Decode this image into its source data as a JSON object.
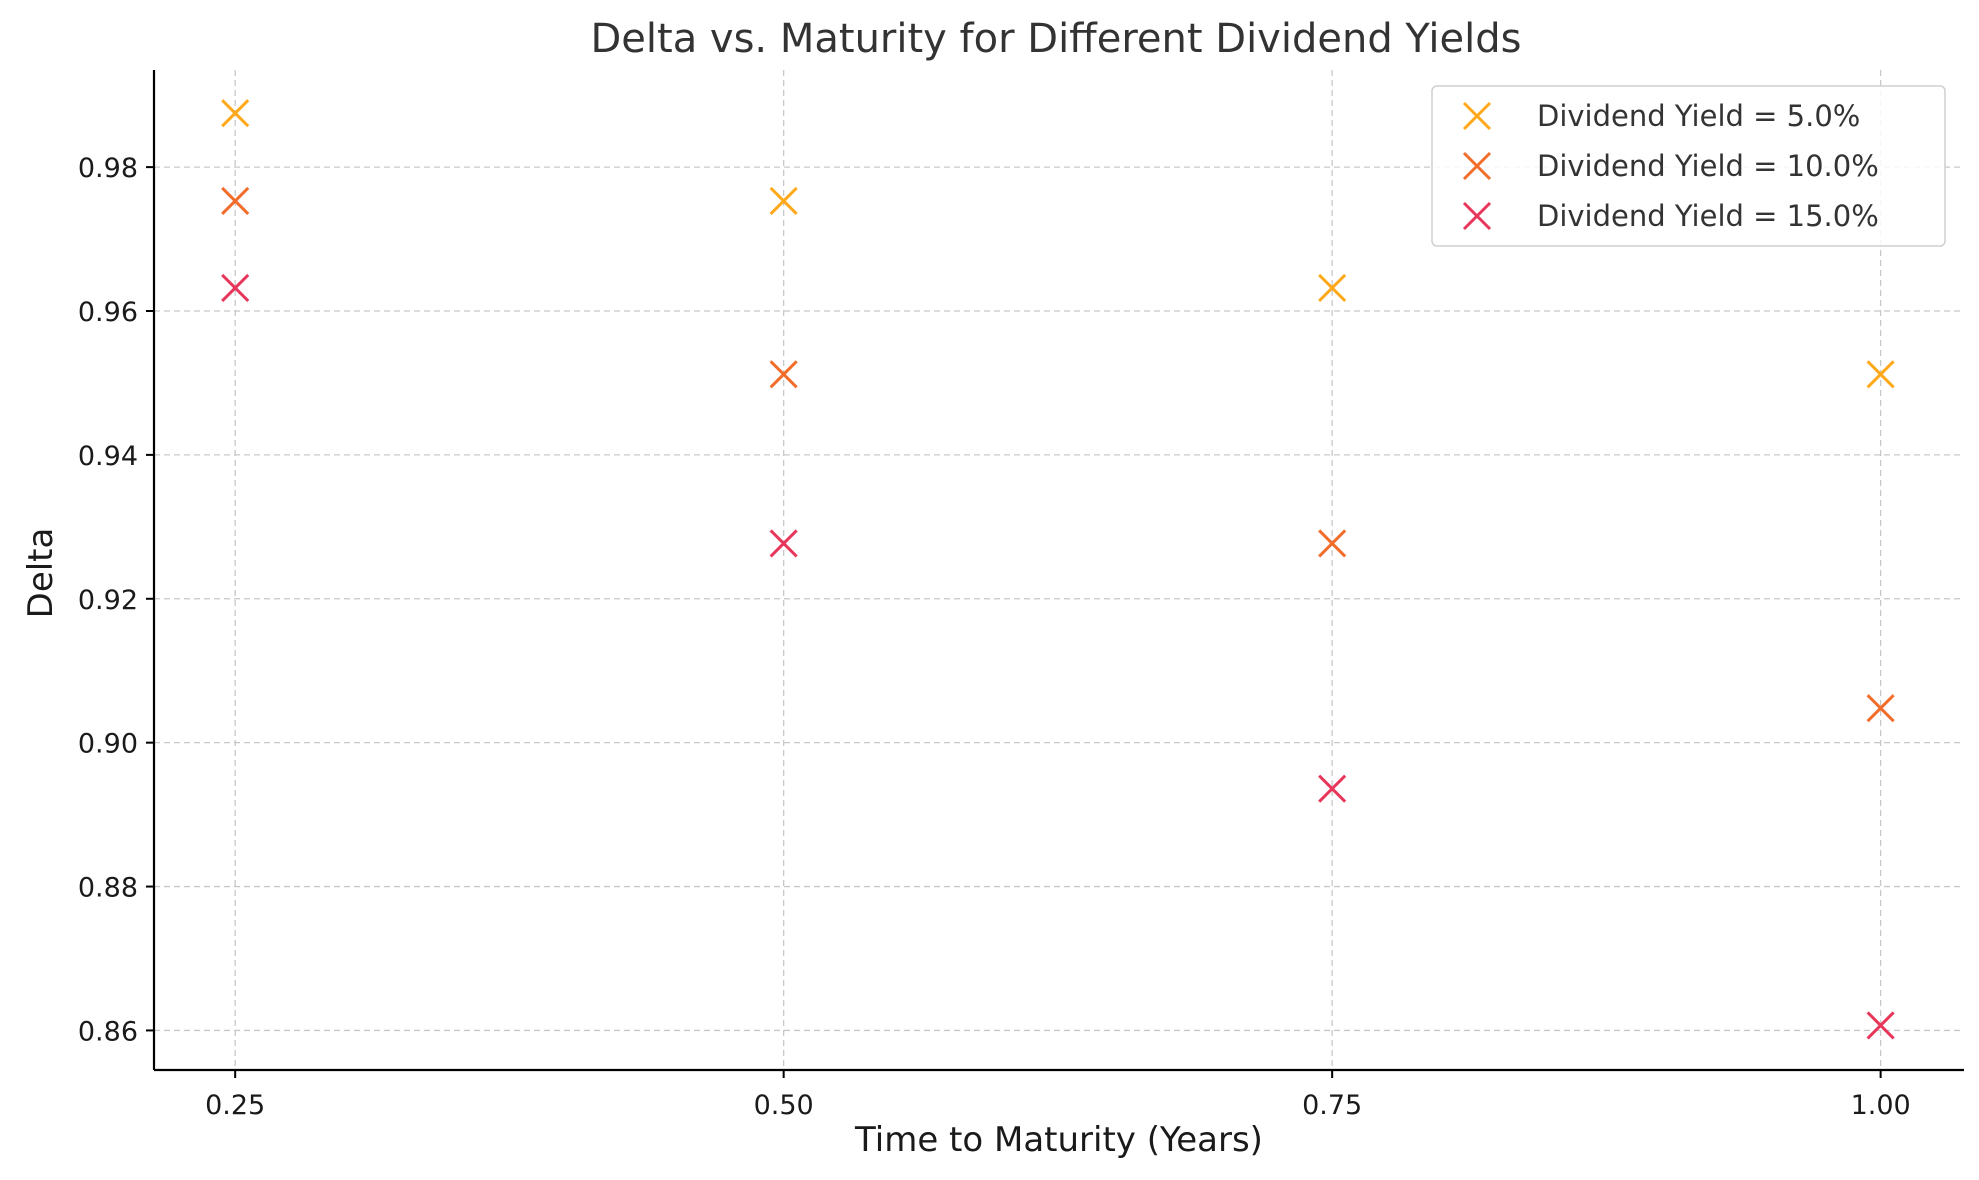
{
  "chart_data": {
    "type": "scatter",
    "title": "Delta vs. Maturity for Different Dividend Yields",
    "xlabel": "Time to Maturity (Years)",
    "ylabel": "Delta",
    "x": [
      0.25,
      0.5,
      0.75,
      1.0
    ],
    "xticks": [
      "0.25",
      "0.50",
      "0.75",
      "1.00"
    ],
    "yticks": [
      "0.86",
      "0.88",
      "0.90",
      "0.92",
      "0.94",
      "0.96",
      "0.98"
    ],
    "xlim": [
      0.213,
      1.038
    ],
    "ylim": [
      0.8545,
      0.9935
    ],
    "grid": true,
    "legend": "top-right",
    "marker": "x",
    "series": [
      {
        "name": "Dividend Yield = 5.0%",
        "color": "#ffa91a",
        "values": [
          0.9875,
          0.9753,
          0.9632,
          0.9512
        ]
      },
      {
        "name": "Dividend Yield = 10.0%",
        "color": "#f26c2a",
        "values": [
          0.9753,
          0.9512,
          0.9277,
          0.9048
        ]
      },
      {
        "name": "Dividend Yield = 15.0%",
        "color": "#e8365a",
        "values": [
          0.9632,
          0.9277,
          0.8936,
          0.8607
        ]
      }
    ]
  }
}
